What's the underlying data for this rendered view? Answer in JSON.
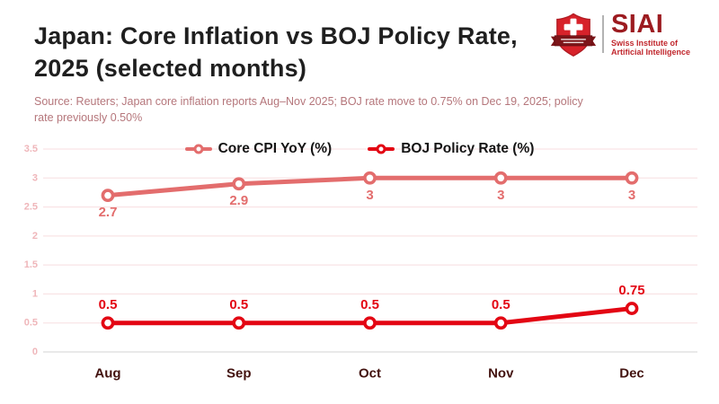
{
  "header": {
    "title_line1": "Japan: Core Inflation vs BOJ Policy Rate,",
    "title_line2": "2025 (selected months)",
    "title_full": "Japan: Core Inflation vs BOJ Policy Rate, 2025 (selected months)",
    "source_line1": "Source: Reuters; Japan core inflation reports Aug–Nov 2025; BOJ rate move to 0.75% on Dec 19, 2025; policy",
    "source_line2": "rate previously 0.50%"
  },
  "logo": {
    "brand": "SIAI",
    "tagline_line1": "Swiss Institute of",
    "tagline_line2": "Artificial Intelligence",
    "shield_icon": "swiss-shield-icon",
    "brand_color": "#9c1b20",
    "tagline_color": "#c1272d",
    "shield_red": "#d7222a",
    "banner_dark_red": "#7d1519"
  },
  "chart_data": {
    "type": "line",
    "title": "Japan: Core Inflation vs BOJ Policy Rate, 2025 (selected months)",
    "categories": [
      "Aug",
      "Sep",
      "Oct",
      "Nov",
      "Dec"
    ],
    "series": [
      {
        "name": "Core CPI YoY (%)",
        "values": [
          2.7,
          2.9,
          3,
          3,
          3
        ],
        "labels": [
          "2.7",
          "2.9",
          "3",
          "3",
          "3"
        ],
        "color": "#e36d6d",
        "label_position": "below"
      },
      {
        "name": "BOJ Policy Rate (%)",
        "values": [
          0.5,
          0.5,
          0.5,
          0.5,
          0.75
        ],
        "labels": [
          "0.5",
          "0.5",
          "0.5",
          "0.5",
          "0.75"
        ],
        "color": "#e30613",
        "label_position": "above"
      }
    ],
    "xlabel": "",
    "ylabel": "",
    "ylim": [
      0,
      3.5
    ],
    "ytick_step": 0.5,
    "ytick_labels": [
      "0",
      "0.5",
      "1",
      "1.5",
      "2",
      "2.5",
      "3",
      "3.5"
    ],
    "grid": true,
    "legend_position": "top-center",
    "theme": {
      "grid_color": "#f9e4e6",
      "axis_color": "#dcdcdc",
      "ytick_color": "#efb6ba",
      "xtick_color": "#431310",
      "background": "#ffffff"
    }
  }
}
